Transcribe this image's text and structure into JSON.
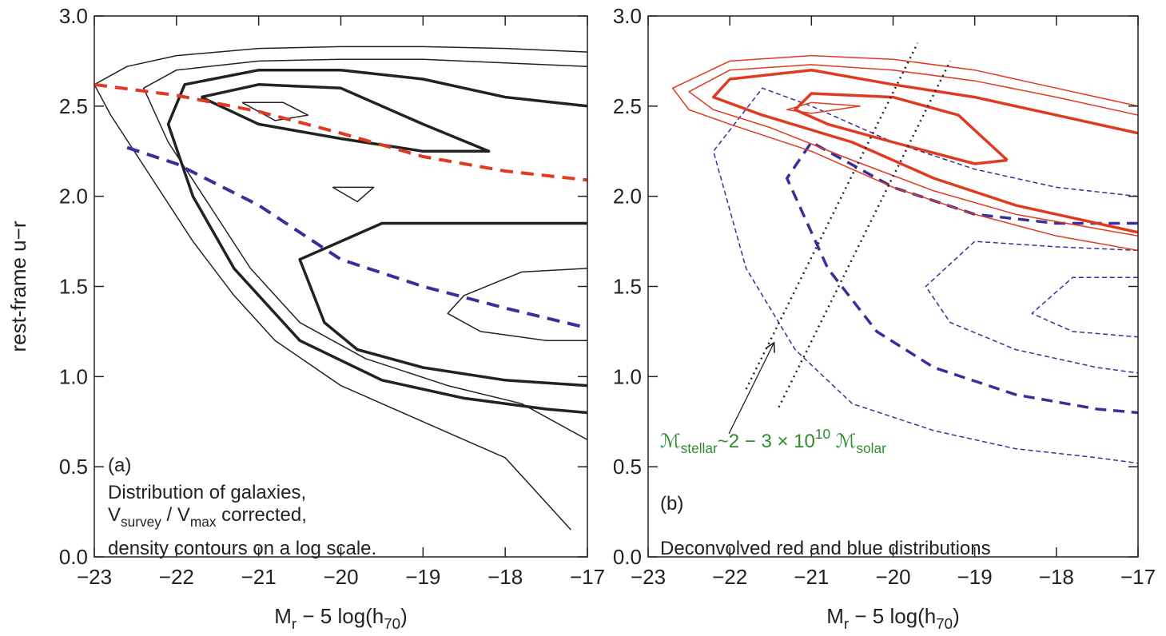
{
  "chart_data": [
    {
      "type": "line",
      "y_label": "rest-frame u−r",
      "x_label": [
        {
          "text": "M"
        },
        {
          "text": "r",
          "sub": true
        },
        {
          "text": " − 5 log(h"
        },
        {
          "text": "70",
          "sub": true
        },
        {
          "text": ")"
        }
      ],
      "xlim": [
        -23,
        -17
      ],
      "xticks": [
        {
          "value": -23,
          "label": "−23"
        },
        {
          "value": -22,
          "label": "−22"
        },
        {
          "value": -21,
          "label": "−21"
        },
        {
          "value": -20,
          "label": "−20"
        },
        {
          "value": -19,
          "label": "−19"
        },
        {
          "value": -18,
          "label": "−18"
        },
        {
          "value": -17,
          "label": "−17"
        }
      ],
      "ylim": [
        0,
        3
      ],
      "yticks": [
        {
          "value": 0,
          "label": "0.0"
        },
        {
          "value": 0.5,
          "label": "0.5"
        },
        {
          "value": 1,
          "label": "1.0"
        },
        {
          "value": 1.5,
          "label": "1.5"
        },
        {
          "value": 2,
          "label": "2.0"
        },
        {
          "value": 2.5,
          "label": "2.5"
        },
        {
          "value": 3,
          "label": "3.0"
        }
      ],
      "annotations": [
        {
          "parts": [
            {
              "text": "(a)"
            }
          ]
        },
        {
          "parts": [
            {
              "text": "Distribution of galaxies,"
            }
          ]
        },
        {
          "parts": [
            {
              "text": "V"
            },
            {
              "text": "survey",
              "sub": true
            },
            {
              "text": " / V"
            },
            {
              "text": "max",
              "sub": true
            },
            {
              "text": " corrected,"
            }
          ]
        },
        {
          "parts": [
            {
              "text": "density contours on a log scale."
            }
          ]
        }
      ],
      "series": [
        {
          "color": "#222222",
          "style": "solid",
          "width": 1.5,
          "x": [
            -17,
            -18,
            -19,
            -20,
            -21,
            -22,
            -22.6,
            -23,
            -22.8,
            -22.3,
            -21.8,
            -21.3,
            -20.8,
            -20,
            -19,
            -18,
            -17.5,
            -17.2
          ],
          "values": [
            2.8,
            2.82,
            2.83,
            2.83,
            2.82,
            2.78,
            2.72,
            2.62,
            2.45,
            2.1,
            1.75,
            1.45,
            1.2,
            0.95,
            0.75,
            0.55,
            0.3,
            0.15
          ]
        },
        {
          "color": "#222222",
          "style": "solid",
          "width": 1.5,
          "x": [
            -17,
            -18,
            -19,
            -20,
            -21,
            -22,
            -22.4,
            -22.1,
            -21.6,
            -21.1,
            -20.5,
            -19.7,
            -18.7,
            -17.8,
            -17
          ],
          "values": [
            2.72,
            2.74,
            2.76,
            2.76,
            2.75,
            2.7,
            2.6,
            2.3,
            1.95,
            1.6,
            1.3,
            1.1,
            0.95,
            0.85,
            0.65
          ]
        },
        {
          "color": "#222222",
          "style": "solid",
          "width": 3.5,
          "x": [
            -17,
            -18,
            -19,
            -20,
            -21,
            -21.9,
            -22.1,
            -21.8,
            -21.3,
            -20.5,
            -19.5,
            -18.5,
            -17.5,
            -17
          ],
          "values": [
            2.5,
            2.55,
            2.65,
            2.7,
            2.7,
            2.62,
            2.4,
            2.0,
            1.6,
            1.2,
            0.98,
            0.88,
            0.82,
            0.8
          ]
        },
        {
          "color": "#222222",
          "style": "solid",
          "width": 3.5,
          "x": [
            -21.7,
            -21,
            -20,
            -19,
            -18.2,
            -19,
            -20,
            -21,
            -21.7
          ],
          "values": [
            2.55,
            2.62,
            2.6,
            2.4,
            2.25,
            2.25,
            2.32,
            2.4,
            2.55
          ]
        },
        {
          "color": "#222222",
          "style": "solid",
          "width": 1.5,
          "x": [
            -21.2,
            -20.7,
            -20.4,
            -20.8,
            -21.2
          ],
          "values": [
            2.52,
            2.52,
            2.45,
            2.42,
            2.52
          ]
        },
        {
          "color": "#222222",
          "style": "solid",
          "width": 3.5,
          "x": [
            -17,
            -17.5,
            -18.5,
            -19.5,
            -20.5,
            -20.2,
            -19.8,
            -19,
            -18,
            -17
          ],
          "values": [
            1.85,
            1.85,
            1.85,
            1.85,
            1.65,
            1.3,
            1.15,
            1.05,
            0.98,
            0.95
          ]
        },
        {
          "color": "#222222",
          "style": "solid",
          "width": 1.5,
          "x": [
            -17,
            -17.8,
            -18.5,
            -18.7,
            -18.3,
            -17.5,
            -17
          ],
          "values": [
            1.6,
            1.58,
            1.45,
            1.35,
            1.25,
            1.2,
            1.2
          ]
        },
        {
          "color": "#222222",
          "style": "solid",
          "width": 1.5,
          "x": [
            -20.1,
            -19.6,
            -19.8,
            -20.1
          ],
          "values": [
            2.05,
            2.05,
            1.97,
            2.05
          ]
        },
        {
          "color": "#e03a20",
          "style": "dashed",
          "width": 4,
          "x": [
            -23,
            -22,
            -21,
            -20,
            -19,
            -18,
            -17
          ],
          "values": [
            2.62,
            2.56,
            2.47,
            2.35,
            2.22,
            2.14,
            2.09
          ]
        },
        {
          "color": "#3a2f9a",
          "style": "dashed",
          "width": 4,
          "x": [
            -22.6,
            -22,
            -21,
            -20,
            -19,
            -18,
            -17
          ],
          "values": [
            2.27,
            2.18,
            1.95,
            1.65,
            1.5,
            1.38,
            1.27
          ]
        }
      ]
    },
    {
      "type": "line",
      "x_label": [
        {
          "text": "M"
        },
        {
          "text": "r",
          "sub": true
        },
        {
          "text": " − 5 log(h"
        },
        {
          "text": "70",
          "sub": true
        },
        {
          "text": ")"
        }
      ],
      "xlim": [
        -23,
        -17
      ],
      "xticks": [
        {
          "value": -23,
          "label": "−23"
        },
        {
          "value": -22,
          "label": "−22"
        },
        {
          "value": -21,
          "label": "−21"
        },
        {
          "value": -20,
          "label": "−20"
        },
        {
          "value": -19,
          "label": "−19"
        },
        {
          "value": -18,
          "label": "−18"
        },
        {
          "value": -17,
          "label": "−17"
        }
      ],
      "ylim": [
        0,
        3
      ],
      "yticks": [
        {
          "value": 0,
          "label": "0.0"
        },
        {
          "value": 0.5,
          "label": "0.5"
        },
        {
          "value": 1,
          "label": "1.0"
        },
        {
          "value": 1.5,
          "label": "1.5"
        },
        {
          "value": 2,
          "label": "2.0"
        },
        {
          "value": 2.5,
          "label": "2.5"
        },
        {
          "value": 3,
          "label": "3.0"
        }
      ],
      "annotations": [
        {
          "parts": [
            {
              "text": "ℳ"
            },
            {
              "text": "stellar",
              "sub": true
            },
            {
              "text": "~2 − 3 × 10"
            },
            {
              "text": "10",
              "sup": true
            },
            {
              "text": " ℳ"
            },
            {
              "text": "solar",
              "sub": true
            }
          ],
          "color": "#2e8b2e"
        },
        {
          "parts": [
            {
              "text": "(b)"
            }
          ]
        },
        {
          "parts": [
            {
              "text": "Deconvolved red and blue distributions"
            }
          ]
        }
      ],
      "series": [
        {
          "color": "#3a2f9a",
          "style": "dashed",
          "width": 1.5,
          "x": [
            -17,
            -18,
            -19,
            -20,
            -21,
            -21.6,
            -22.2,
            -21.8,
            -21.2,
            -20.5,
            -19.5,
            -18.5,
            -17.5,
            -17
          ],
          "values": [
            2.0,
            2.05,
            2.15,
            2.3,
            2.5,
            2.6,
            2.25,
            1.6,
            1.15,
            0.85,
            0.7,
            0.6,
            0.55,
            0.52
          ]
        },
        {
          "color": "#3a2f9a",
          "style": "dashed",
          "width": 3.5,
          "x": [
            -17,
            -18,
            -19,
            -20,
            -21,
            -21.3,
            -20.8,
            -20.2,
            -19.5,
            -18.5,
            -17.5,
            -17
          ],
          "values": [
            1.85,
            1.85,
            1.9,
            2.05,
            2.3,
            2.1,
            1.6,
            1.25,
            1.05,
            0.9,
            0.82,
            0.8
          ]
        },
        {
          "color": "#3a2f9a",
          "style": "dashed",
          "width": 1.5,
          "x": [
            -17,
            -18,
            -19,
            -19.6,
            -19.3,
            -18.5,
            -17.5,
            -17
          ],
          "values": [
            1.7,
            1.72,
            1.75,
            1.5,
            1.3,
            1.15,
            1.05,
            1.02
          ]
        },
        {
          "color": "#3a2f9a",
          "style": "dashed",
          "width": 1.5,
          "x": [
            -17,
            -17.8,
            -18.3,
            -17.8,
            -17
          ],
          "values": [
            1.55,
            1.55,
            1.35,
            1.25,
            1.22
          ]
        },
        {
          "color": "#e03a20",
          "style": "solid",
          "width": 1.5,
          "x": [
            -17,
            -18,
            -19,
            -20,
            -21,
            -22,
            -22.7,
            -22.5,
            -22,
            -21,
            -20,
            -19,
            -18,
            -17
          ],
          "values": [
            2.5,
            2.6,
            2.7,
            2.76,
            2.78,
            2.75,
            2.6,
            2.48,
            2.4,
            2.25,
            2.05,
            1.9,
            1.78,
            1.7
          ]
        },
        {
          "color": "#e03a20",
          "style": "solid",
          "width": 1.5,
          "x": [
            -17,
            -18,
            -19,
            -20,
            -21,
            -22,
            -22.5,
            -22.2,
            -21.5,
            -20.5,
            -19.5,
            -18.5,
            -17.5,
            -17
          ],
          "values": [
            2.45,
            2.55,
            2.64,
            2.7,
            2.73,
            2.7,
            2.58,
            2.48,
            2.38,
            2.2,
            2.03,
            1.9,
            1.82,
            1.78
          ]
        },
        {
          "color": "#e03a20",
          "style": "solid",
          "width": 3.5,
          "x": [
            -17,
            -18,
            -19,
            -20,
            -21,
            -22,
            -22.2,
            -21.6,
            -20.5,
            -19.5,
            -18.5,
            -17
          ],
          "values": [
            2.35,
            2.45,
            2.55,
            2.62,
            2.7,
            2.65,
            2.55,
            2.45,
            2.3,
            2.1,
            1.95,
            1.8
          ]
        },
        {
          "color": "#e03a20",
          "style": "solid",
          "width": 3.5,
          "x": [
            -18.6,
            -19.2,
            -20,
            -21,
            -21.2,
            -20.8,
            -20,
            -19,
            -18.6
          ],
          "values": [
            2.2,
            2.45,
            2.55,
            2.57,
            2.48,
            2.4,
            2.3,
            2.18,
            2.2
          ]
        },
        {
          "color": "#e03a20",
          "style": "solid",
          "width": 1.5,
          "x": [
            -20.4,
            -21,
            -21.3,
            -21.0,
            -20.4
          ],
          "values": [
            2.5,
            2.52,
            2.48,
            2.46,
            2.5
          ]
        },
        {
          "color": "#222222",
          "style": "dotted",
          "width": 2.5,
          "x": [
            -21.8,
            -19.7
          ],
          "values": [
            0.93,
            2.85
          ]
        },
        {
          "color": "#222222",
          "style": "dotted",
          "width": 2.5,
          "x": [
            -21.4,
            -19.3
          ],
          "values": [
            0.83,
            2.75
          ]
        }
      ]
    }
  ]
}
